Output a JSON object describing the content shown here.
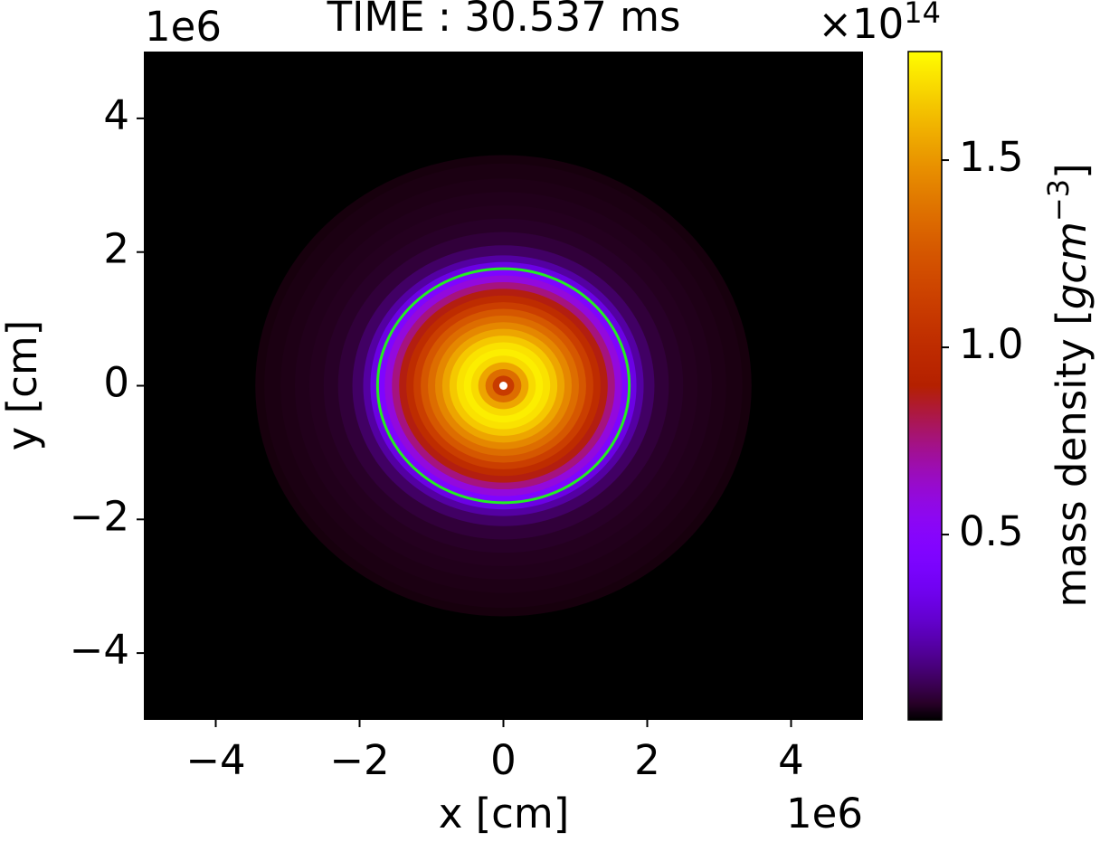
{
  "chart_data": {
    "type": "radial-heatmap",
    "title": "TIME : 30.537 ms",
    "xlabel": "x [cm]",
    "ylabel": "y [cm]",
    "x_offset": "1e6",
    "y_offset": "1e6",
    "xlim": [
      -5000000,
      5000000
    ],
    "ylim": [
      -5000000,
      5000000
    ],
    "xticks": [
      {
        "value": -4000000,
        "label": "−4"
      },
      {
        "value": -2000000,
        "label": "−2"
      },
      0,
      {
        "value": 2000000,
        "label": "2"
      },
      {
        "value": 4000000,
        "label": "4"
      }
    ],
    "yticks": [
      {
        "value": -4000000,
        "label": "−4"
      },
      {
        "value": -2000000,
        "label": "−2"
      },
      0,
      {
        "value": 2000000,
        "label": "2"
      },
      {
        "value": 4000000,
        "label": "4"
      }
    ],
    "colormap": "gnuplot",
    "radius": [
      0,
      100000,
      200000,
      300000,
      400000,
      500000,
      600000,
      700000,
      800000,
      900000,
      1000000,
      1100000,
      1200000,
      1300000,
      1400000,
      1500000,
      1600000,
      1700000,
      1800000,
      1900000,
      2000000,
      2200000,
      2400000,
      2600000,
      2800000,
      3000000,
      3200000,
      3450000
    ],
    "values": [
      95000000000000.0,
      110000000000000.0,
      135000000000000.0,
      155000000000000.0,
      170000000000000.0,
      175000000000000.0,
      172000000000000.0,
      165000000000000.0,
      155000000000000.0,
      145000000000000.0,
      135000000000000.0,
      125000000000000.0,
      112000000000000.0,
      100000000000000.0,
      88000000000000.0,
      75000000000000.0,
      60000000000000.0,
      45000000000000.0,
      32000000000000.0,
      20000000000000.0,
      12000000000000.0,
      7000000000000.0,
      5000000000000.0,
      4000000000000.0,
      3500000000000.0,
      3000000000000.0,
      2500000000000.0,
      2000000000000.0
    ],
    "contour": {
      "radius": 1750000,
      "color": "#22ee22"
    },
    "marker": {
      "x": 0,
      "y": 0,
      "color": "#ffffff"
    },
    "colorbar": {
      "clim": [
        500000000000,
        179000000000000
      ],
      "ticks": [
        {
          "value": 50000000000000,
          "label": "0.5"
        },
        {
          "value": 100000000000000,
          "label": "1.0"
        },
        {
          "value": 150000000000000,
          "label": "1.5"
        }
      ],
      "offset": {
        "base": "×10",
        "exponent": "14"
      },
      "label": {
        "text": "mass density [",
        "math": "gcm",
        "exponent": "−3",
        "close": "]"
      }
    }
  }
}
